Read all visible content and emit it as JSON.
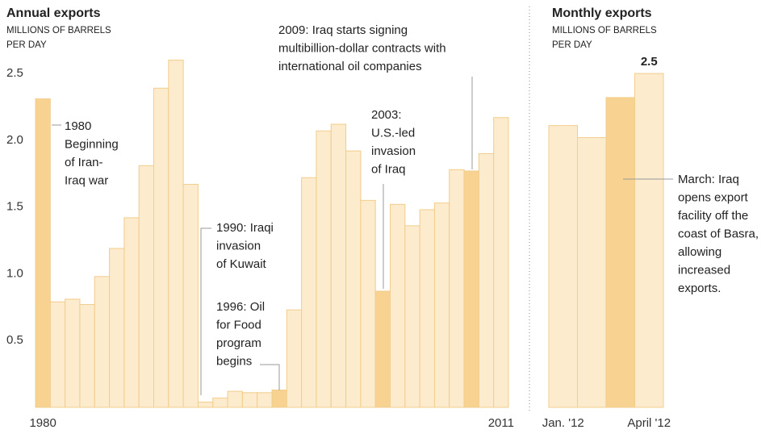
{
  "chart_data": [
    {
      "type": "bar",
      "title": "Annual exports",
      "subtitle": [
        "MILLIONS OF BARRELS",
        "PER DAY"
      ],
      "categories": [
        "1980",
        null,
        null,
        null,
        null,
        null,
        null,
        null,
        null,
        null,
        null,
        null,
        null,
        null,
        null,
        null,
        null,
        null,
        null,
        null,
        null,
        null,
        null,
        null,
        null,
        null,
        null,
        null,
        null,
        null,
        null,
        "2011"
      ],
      "values": [
        2.31,
        0.79,
        0.81,
        0.77,
        0.98,
        1.19,
        1.42,
        1.81,
        2.39,
        2.6,
        1.67,
        0.04,
        0.07,
        0.12,
        0.11,
        0.11,
        0.13,
        0.73,
        1.72,
        2.07,
        2.12,
        1.92,
        1.55,
        0.87,
        1.52,
        1.36,
        1.48,
        1.53,
        1.78,
        1.77,
        1.9,
        2.17
      ],
      "color": "#fcebcd",
      "highlight_color": "#f7d290",
      "highlight": [
        0,
        16,
        23,
        29
      ],
      "ylim": [
        0,
        2.7
      ],
      "yticks": [
        0.5,
        {
          "value": 1.0,
          "label": "1.0"
        },
        1.5,
        {
          "value": 2.0,
          "label": "2.0"
        },
        2.5
      ],
      "annotations": [
        [
          "1980",
          "Beginning",
          "of Iran-",
          "Iraq war"
        ],
        [
          "1990: Iraqi",
          "invasion",
          "of Kuwait"
        ],
        [
          "1996: Oil",
          "for Food",
          "program",
          "begins"
        ],
        [
          "2003:",
          "U.S.-led",
          "invasion",
          "of Iraq"
        ],
        [
          "2009: Iraq starts signing",
          "multibillion-dollar contracts with",
          "international oil companies"
        ]
      ]
    },
    {
      "type": "bar",
      "title": "Monthly exports",
      "subtitle": [
        "MILLIONS OF BARRELS",
        "PER DAY"
      ],
      "categories": [
        "Jan. '12",
        null,
        null,
        "April '12"
      ],
      "values": [
        2.11,
        2.02,
        2.32,
        2.5
      ],
      "value_labels": [
        null,
        null,
        null,
        "2.5"
      ],
      "color": "#fcebcd",
      "highlight_color": "#f7d290",
      "highlight": [
        2
      ],
      "ylim": [
        0,
        2.7
      ],
      "annotations": [
        [
          "March: Iraq",
          "opens export",
          "facility off the",
          "coast of Basra,",
          "allowing",
          "increased",
          "exports."
        ]
      ]
    }
  ]
}
